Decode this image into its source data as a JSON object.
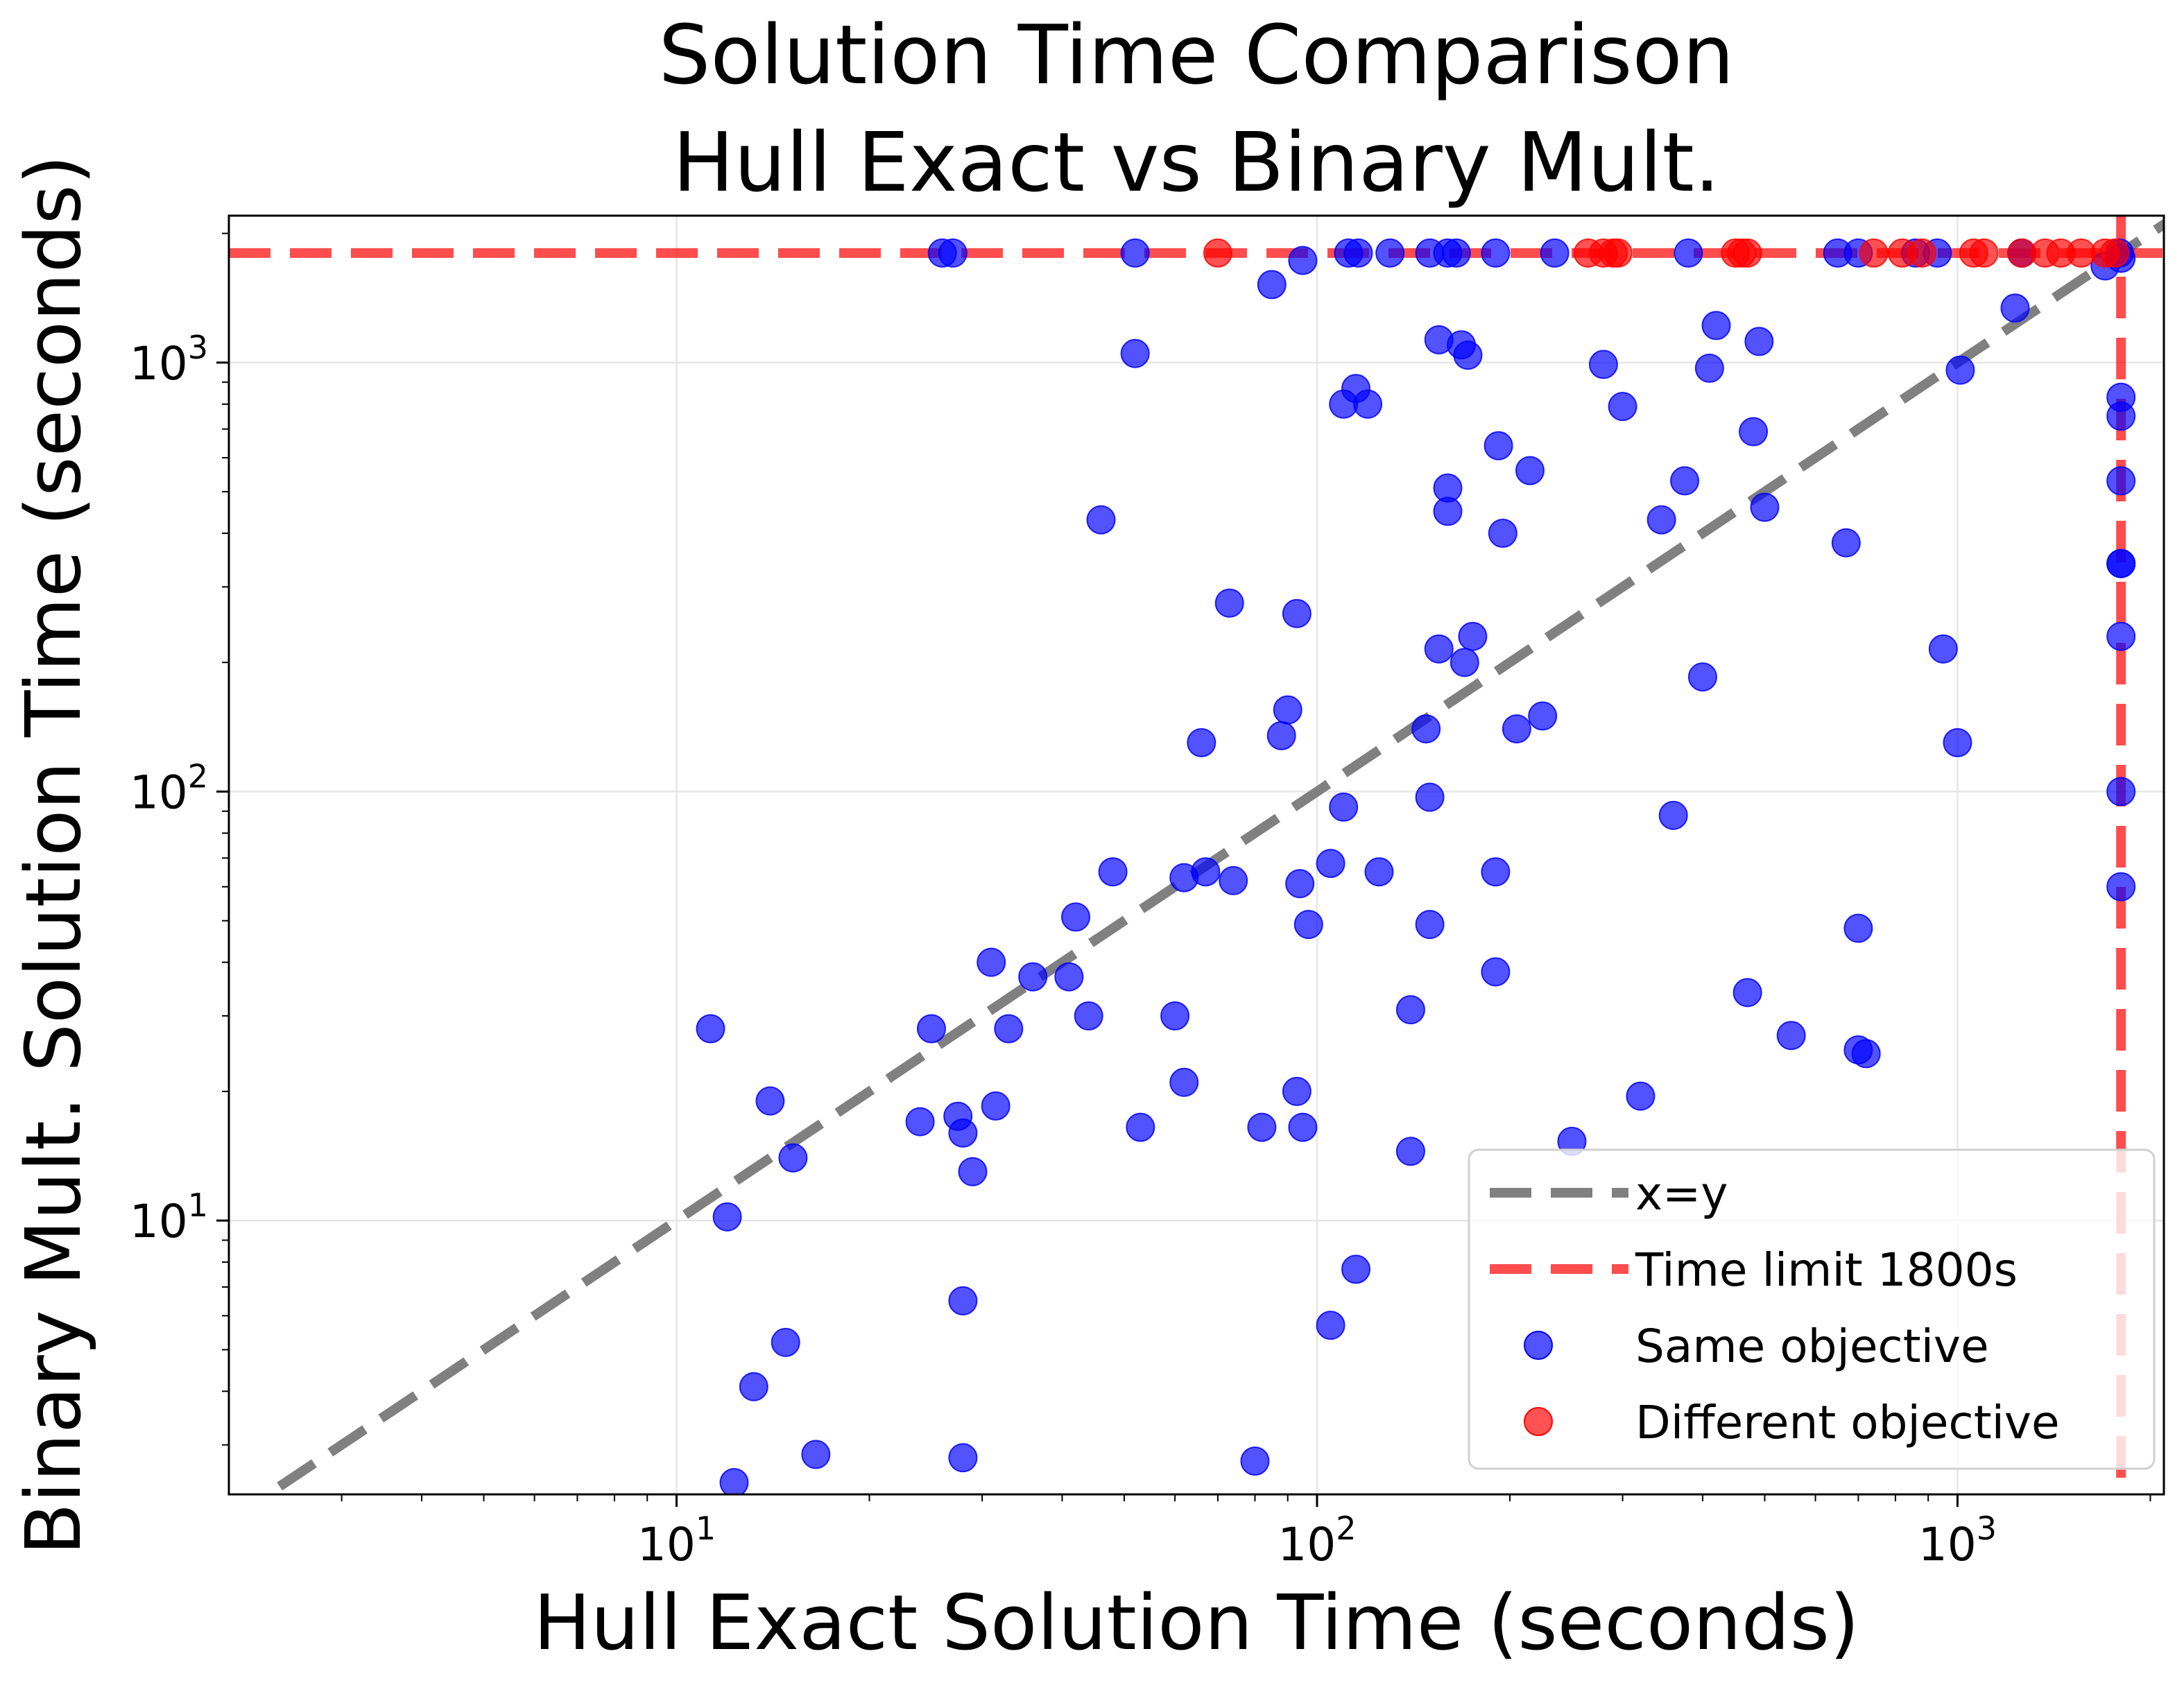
{
  "chart_data": {
    "type": "scatter",
    "title_lines": [
      "Solution Time Comparison",
      "Hull Exact vs Binary Mult."
    ],
    "xlabel": "Hull Exact Solution Time (seconds)",
    "ylabel": "Binary Mult. Solution Time (seconds)",
    "xscale": "log",
    "yscale": "log",
    "xlim": [
      2.0,
      2100
    ],
    "ylim": [
      2.3,
      2200
    ],
    "x_ticks": [
      {
        "value": 10,
        "base": "10",
        "exp": "1"
      },
      {
        "value": 100,
        "base": "10",
        "exp": "2"
      },
      {
        "value": 1000,
        "base": "10",
        "exp": "3"
      }
    ],
    "y_ticks": [
      {
        "value": 10,
        "base": "10",
        "exp": "1"
      },
      {
        "value": 100,
        "base": "10",
        "exp": "2"
      },
      {
        "value": 1000,
        "base": "10",
        "exp": "3"
      }
    ],
    "grid": true,
    "time_limit": 1800,
    "colors": {
      "same": "#0000ff",
      "different": "#ff0000",
      "xy_line": "#808080",
      "limit_line": "#ff0000"
    },
    "legend": {
      "position": "lower-right",
      "entries": [
        {
          "label": "x=y",
          "kind": "line-gray"
        },
        {
          "label": "Time limit 1800s",
          "kind": "line-red"
        },
        {
          "label": "Same objective",
          "kind": "dot-blue"
        },
        {
          "label": "Different objective",
          "kind": "dot-red"
        }
      ]
    },
    "series": [
      {
        "name": "Same objective",
        "points": [
          [
            26,
            1800
          ],
          [
            27,
            1800
          ],
          [
            52,
            1800
          ],
          [
            112,
            1800
          ],
          [
            116,
            1800
          ],
          [
            130,
            1800
          ],
          [
            150,
            1800
          ],
          [
            160,
            1800
          ],
          [
            165,
            1800
          ],
          [
            190,
            1800
          ],
          [
            235,
            1800
          ],
          [
            380,
            1800
          ],
          [
            650,
            1800
          ],
          [
            700,
            1800
          ],
          [
            860,
            1800
          ],
          [
            930,
            1800
          ],
          [
            1260,
            1800
          ],
          [
            1790,
            1800
          ],
          [
            85,
            1520
          ],
          [
            95,
            1730
          ],
          [
            52,
            1050
          ],
          [
            1230,
            1340
          ],
          [
            1700,
            1680
          ],
          [
            1800,
            1750
          ],
          [
            155,
            1130
          ],
          [
            168,
            1100
          ],
          [
            172,
            1040
          ],
          [
            420,
            1220
          ],
          [
            490,
            1120
          ],
          [
            410,
            970
          ],
          [
            280,
            990
          ],
          [
            1010,
            960
          ],
          [
            110,
            800
          ],
          [
            115,
            870
          ],
          [
            120,
            800
          ],
          [
            300,
            790
          ],
          [
            1800,
            830
          ],
          [
            1800,
            750
          ],
          [
            192,
            640
          ],
          [
            215,
            560
          ],
          [
            480,
            690
          ],
          [
            160,
            510
          ],
          [
            160,
            450
          ],
          [
            195,
            400
          ],
          [
            375,
            530
          ],
          [
            345,
            430
          ],
          [
            500,
            460
          ],
          [
            670,
            380
          ],
          [
            1800,
            530
          ],
          [
            46,
            430
          ],
          [
            73,
            275
          ],
          [
            93,
            260
          ],
          [
            1800,
            340
          ],
          [
            1800,
            340
          ],
          [
            155,
            215
          ],
          [
            170,
            200
          ],
          [
            175,
            230
          ],
          [
            400,
            185
          ],
          [
            950,
            215
          ],
          [
            1800,
            230
          ],
          [
            90,
            155
          ],
          [
            88,
            135
          ],
          [
            66,
            130
          ],
          [
            148,
            140
          ],
          [
            205,
            140
          ],
          [
            225,
            150
          ],
          [
            1000,
            130
          ],
          [
            110,
            92
          ],
          [
            150,
            97
          ],
          [
            360,
            88
          ],
          [
            1800,
            100
          ],
          [
            48,
            65
          ],
          [
            62,
            63
          ],
          [
            67,
            65
          ],
          [
            74,
            62
          ],
          [
            94,
            61
          ],
          [
            105,
            68
          ],
          [
            125,
            65
          ],
          [
            190,
            65
          ],
          [
            1800,
            60
          ],
          [
            42,
            51
          ],
          [
            97,
            49
          ],
          [
            150,
            49
          ],
          [
            700,
            48
          ],
          [
            31,
            40
          ],
          [
            36,
            37
          ],
          [
            41,
            37
          ],
          [
            33,
            28
          ],
          [
            44,
            30
          ],
          [
            60,
            30
          ],
          [
            25,
            28
          ],
          [
            140,
            31
          ],
          [
            190,
            38
          ],
          [
            470,
            34
          ],
          [
            550,
            27
          ],
          [
            700,
            25
          ],
          [
            720,
            24.5
          ],
          [
            11.3,
            28
          ],
          [
            14,
            19
          ],
          [
            15.2,
            14
          ],
          [
            12,
            10.2
          ],
          [
            24,
            17
          ],
          [
            27.5,
            17.5
          ],
          [
            28,
            16
          ],
          [
            29,
            13
          ],
          [
            31.5,
            18.5
          ],
          [
            53,
            16.5
          ],
          [
            62,
            21
          ],
          [
            82,
            16.5
          ],
          [
            93,
            20
          ],
          [
            95,
            16.5
          ],
          [
            140,
            14.5
          ],
          [
            250,
            15.3
          ],
          [
            320,
            19.5
          ],
          [
            28,
            6.5
          ],
          [
            14.8,
            5.2
          ],
          [
            13.2,
            4.1
          ],
          [
            12.3,
            2.45
          ],
          [
            16.5,
            2.85
          ],
          [
            28,
            2.8
          ],
          [
            80,
            2.75
          ],
          [
            105,
            5.7
          ],
          [
            115,
            7.7
          ]
        ]
      },
      {
        "name": "Different objective",
        "points": [
          [
            70,
            1800
          ],
          [
            265,
            1800
          ],
          [
            280,
            1800
          ],
          [
            290,
            1800
          ],
          [
            295,
            1800
          ],
          [
            450,
            1800
          ],
          [
            460,
            1800
          ],
          [
            470,
            1800
          ],
          [
            740,
            1800
          ],
          [
            820,
            1800
          ],
          [
            880,
            1800
          ],
          [
            1060,
            1800
          ],
          [
            1100,
            1800
          ],
          [
            1260,
            1800
          ],
          [
            1370,
            1800
          ],
          [
            1450,
            1800
          ],
          [
            1560,
            1800
          ],
          [
            1700,
            1800
          ],
          [
            1760,
            1800
          ]
        ]
      }
    ]
  }
}
